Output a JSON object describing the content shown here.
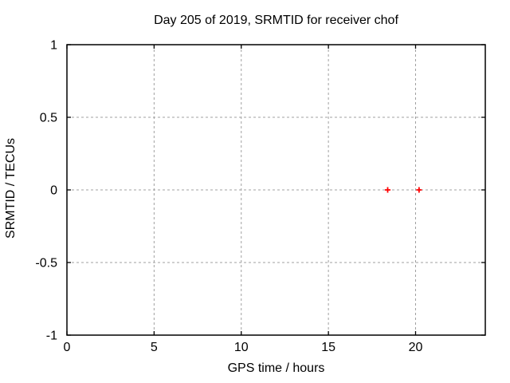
{
  "chart_data": {
    "type": "scatter",
    "title": "Day 205 of 2019, SRMTID for receiver chof",
    "xlabel": "GPS time / hours",
    "ylabel": "SRMTID / TECUs",
    "xlim": [
      0,
      24
    ],
    "ylim": [
      -1,
      1
    ],
    "xticks": [
      {
        "v": 0,
        "label": "0"
      },
      {
        "v": 5,
        "label": "5"
      },
      {
        "v": 10,
        "label": "10"
      },
      {
        "v": 15,
        "label": "15"
      },
      {
        "v": 20,
        "label": "20"
      }
    ],
    "yticks": [
      {
        "v": -1,
        "label": "-1"
      },
      {
        "v": -0.5,
        "label": "-0.5"
      },
      {
        "v": 0,
        "label": "0"
      },
      {
        "v": 0.5,
        "label": "0.5"
      },
      {
        "v": 1,
        "label": "1"
      }
    ],
    "grid": true,
    "legend_position": "none",
    "series": [
      {
        "name": "SRMTID",
        "marker": "plus",
        "color": "#ff0000",
        "points": [
          {
            "x": 18.4,
            "y": 0.0
          },
          {
            "x": 20.2,
            "y": 0.0
          }
        ]
      }
    ],
    "colors": {
      "background": "#ffffff",
      "border": "#000000",
      "grid": "#a0a0a0",
      "text": "#000000"
    }
  }
}
